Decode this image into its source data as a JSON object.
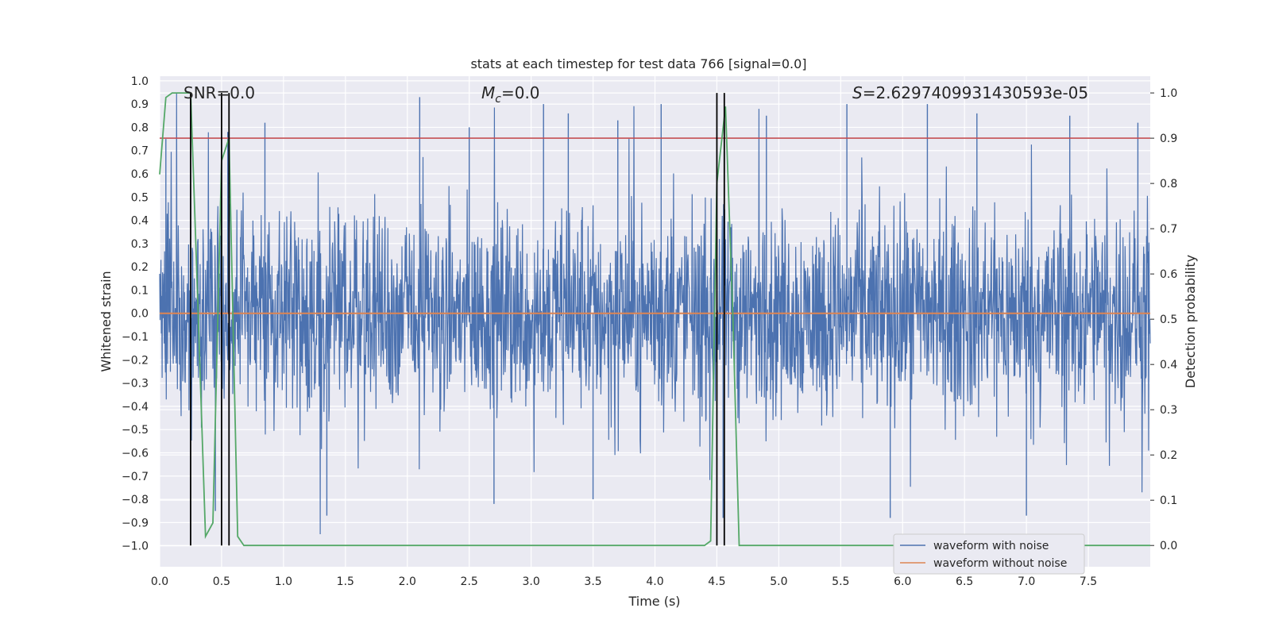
{
  "chart_data": {
    "type": "line",
    "title": "stats at each timestep for test data 766 [signal=0.0]",
    "xlabel": "Time (s)",
    "ylabel_left": "Whitened strain",
    "ylabel_right": "Detection probability",
    "xlim": [
      0.0,
      8.0
    ],
    "ylim_left": [
      -1.09,
      1.02
    ],
    "ylim_right": [
      -0.047,
      1.037
    ],
    "xticks": [
      "0.0",
      "0.5",
      "1.0",
      "1.5",
      "2.0",
      "2.5",
      "3.0",
      "3.5",
      "4.0",
      "4.5",
      "5.0",
      "5.5",
      "6.0",
      "6.5",
      "7.0",
      "7.5"
    ],
    "yticks_left": [
      "1.0",
      "0.9",
      "0.8",
      "0.7",
      "0.6",
      "0.5",
      "0.4",
      "0.3",
      "0.2",
      "0.1",
      "0.0",
      "-0.1",
      "-0.2",
      "-0.3",
      "-0.4",
      "-0.5",
      "-0.6",
      "-0.7",
      "-0.8",
      "-0.9",
      "-1.0"
    ],
    "yticks_right": [
      "0.0",
      "0.1",
      "0.2",
      "0.3",
      "0.4",
      "0.5",
      "0.6",
      "0.7",
      "0.8",
      "0.9",
      "1.0"
    ],
    "annotations": {
      "snr": "SNR=0.0",
      "mc_symbol": "M",
      "mc_sub": "c",
      "mc_value": "=0.0",
      "s_symbol": "S",
      "s_value": "=2.6297409931430593e-05"
    },
    "series": [
      {
        "name": "waveform with noise",
        "color": "#4c72b0",
        "axis": "left",
        "description": "dense noisy whitened strain, envelope approximately ±0.5 with spikes to ±0.95",
        "envelope_peaks_time": [
          0.05,
          0.45,
          0.55,
          0.85,
          1.35,
          2.1,
          2.5,
          2.7,
          3.1,
          3.3,
          3.5,
          3.7,
          4.05,
          4.55,
          4.9,
          5.55,
          5.9,
          6.2,
          6.6,
          7.0,
          7.35,
          7.9
        ],
        "envelope_peaks_value": [
          0.75,
          0.85,
          0.78,
          0.82,
          0.87,
          0.93,
          0.8,
          0.82,
          0.9,
          0.86,
          0.8,
          0.83,
          0.9,
          0.88,
          0.85,
          0.9,
          0.88,
          0.9,
          0.86,
          0.87,
          0.85,
          0.82
        ]
      },
      {
        "name": "waveform without noise",
        "color": "#dd8452",
        "axis": "left",
        "x": [
          0.0,
          8.0
        ],
        "y": [
          0.0,
          0.0
        ]
      },
      {
        "name": "detection probability",
        "color": "#55a868",
        "axis": "right",
        "x": [
          0.0,
          0.05,
          0.1,
          0.17,
          0.25,
          0.3,
          0.37,
          0.43,
          0.5,
          0.56,
          0.63,
          0.68,
          4.4,
          4.45,
          4.5,
          4.57,
          4.63,
          4.68,
          8.0
        ],
        "y": [
          0.82,
          0.99,
          1.0,
          1.0,
          1.0,
          0.6,
          0.02,
          0.05,
          0.85,
          0.9,
          0.02,
          0.0,
          0.0,
          0.01,
          0.8,
          0.97,
          0.5,
          0.0,
          0.0
        ]
      }
    ],
    "threshold": {
      "value": 0.9,
      "axis": "right",
      "color": "#c44e52"
    },
    "vertical_lines_x": [
      0.25,
      0.5,
      0.56,
      4.5,
      4.56
    ],
    "legend": {
      "placement": "lower-right",
      "entries": [
        {
          "label": "waveform with noise",
          "color": "#4c72b0"
        },
        {
          "label": "waveform without noise",
          "color": "#dd8452"
        }
      ]
    }
  }
}
